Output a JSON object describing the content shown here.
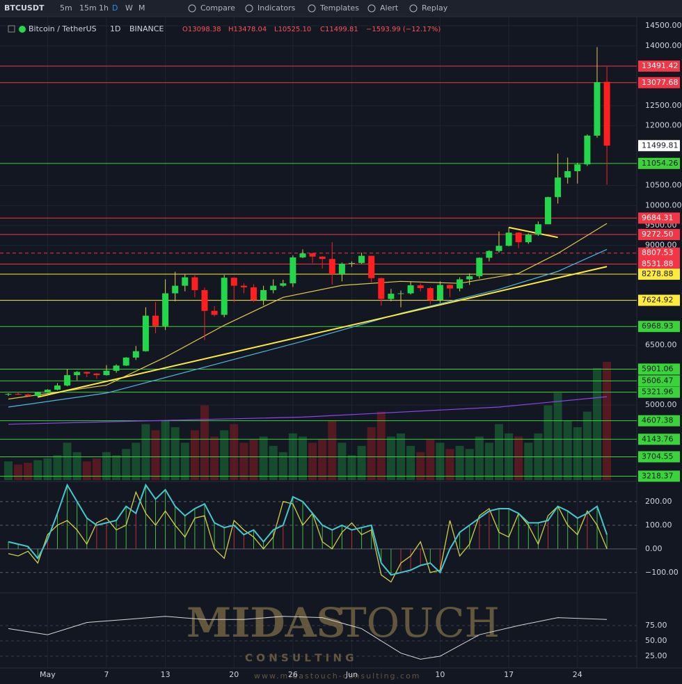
{
  "toolbar": {
    "symbol": "BTCUSDT",
    "intervals": [
      "5m",
      "15m",
      "1h",
      "D",
      "W",
      "M"
    ],
    "buttons": [
      "Compare",
      "Indicators",
      "Templates",
      "Alert",
      "Replay"
    ]
  },
  "chart_data": {
    "type": "candlestick",
    "title": "Bitcoin / TetherUS",
    "interval": "1D",
    "exchange": "BINANCE",
    "legend_values": [
      "O13098.38",
      "H13478.04",
      "L10525.10",
      "C11499.81",
      "−1593.99 (−12.17%)"
    ],
    "categories": [
      null,
      null,
      null,
      null,
      "May",
      null,
      null,
      null,
      null,
      null,
      "7",
      null,
      null,
      null,
      null,
      null,
      "13",
      null,
      null,
      null,
      null,
      null,
      null,
      "20",
      null,
      null,
      null,
      null,
      null,
      "26",
      null,
      null,
      null,
      null,
      null,
      "Jun",
      null,
      null,
      null,
      null,
      null,
      null,
      null,
      null,
      "10",
      null,
      null,
      null,
      null,
      null,
      null,
      "17",
      null,
      null,
      null,
      null,
      null,
      null,
      "24",
      null,
      null,
      null
    ],
    "open": [
      5270,
      5280,
      5265,
      5230,
      5320,
      5385,
      5490,
      5750,
      5830,
      5790,
      5750,
      5860,
      5990,
      6190,
      6350,
      7240,
      6980,
      7800,
      7990,
      8200,
      7880,
      7360,
      7260,
      8190,
      7990,
      7950,
      7630,
      7880,
      7990,
      8050,
      8700,
      8800,
      8720,
      8660,
      8280,
      8540,
      8560,
      8740,
      8180,
      7660,
      7790,
      7800,
      8000,
      7930,
      7630,
      8010,
      7920,
      8150,
      8230,
      8690,
      8860,
      8990,
      9320,
      9080,
      9270,
      9530,
      10210,
      10700,
      10860,
      11030,
      11750,
      13098.38
    ],
    "high": [
      5300,
      5310,
      5280,
      5330,
      5400,
      5550,
      5900,
      5850,
      5840,
      5800,
      6000,
      6020,
      6200,
      6480,
      7450,
      7580,
      8150,
      8340,
      8270,
      8280,
      7940,
      7480,
      8260,
      8200,
      8050,
      8030,
      7990,
      8150,
      8140,
      8750,
      8900,
      8820,
      8730,
      9080,
      8570,
      8600,
      8820,
      8740,
      8190,
      7910,
      7870,
      8100,
      8050,
      7960,
      8100,
      8020,
      8200,
      8300,
      8700,
      8880,
      9350,
      9450,
      9330,
      9300,
      9600,
      10220,
      11300,
      11200,
      11070,
      11780,
      13970,
      13478.04
    ],
    "low": [
      5230,
      5250,
      5200,
      5210,
      5310,
      5370,
      5470,
      5620,
      5700,
      5660,
      5740,
      5810,
      5980,
      6130,
      6340,
      6800,
      6880,
      7600,
      7850,
      7700,
      6630,
      7220,
      7200,
      7580,
      7800,
      7580,
      7500,
      7800,
      7960,
      7960,
      8680,
      8560,
      8420,
      8020,
      8100,
      8460,
      8540,
      8080,
      7490,
      7600,
      7450,
      7770,
      7850,
      7520,
      7560,
      7700,
      7850,
      8010,
      8170,
      8600,
      8820,
      8980,
      8930,
      9040,
      9240,
      9530,
      10050,
      10550,
      10550,
      10990,
      11700,
      10525.1
    ],
    "close": [
      5280,
      5265,
      5230,
      5320,
      5385,
      5490,
      5750,
      5830,
      5790,
      5750,
      5860,
      5990,
      6190,
      6350,
      7240,
      6980,
      7800,
      7990,
      8200,
      7880,
      7360,
      7260,
      8190,
      7990,
      7950,
      7630,
      7880,
      7990,
      8050,
      8700,
      8800,
      8720,
      8660,
      8280,
      8540,
      8560,
      8740,
      8180,
      7660,
      7790,
      7800,
      8000,
      7930,
      7630,
      8010,
      7920,
      8150,
      8230,
      8690,
      8860,
      8990,
      9320,
      9080,
      9270,
      9530,
      10210,
      10700,
      10860,
      11030,
      11750,
      13090,
      11499.81
    ],
    "volume": [
      30,
      25,
      28,
      32,
      35,
      40,
      60,
      45,
      30,
      35,
      45,
      40,
      50,
      60,
      90,
      80,
      95,
      85,
      60,
      80,
      120,
      70,
      80,
      90,
      60,
      65,
      70,
      55,
      45,
      75,
      70,
      60,
      65,
      95,
      60,
      40,
      55,
      85,
      110,
      70,
      75,
      55,
      45,
      65,
      60,
      50,
      55,
      50,
      70,
      60,
      90,
      75,
      70,
      60,
      75,
      120,
      140,
      95,
      85,
      110,
      180,
      190
    ],
    "up_color": "#22d84a",
    "down_color": "#ff1f1f",
    "ylim": [
      3120,
      14660
    ],
    "yticks": [
      {
        "value": 14500,
        "label": "14500.00"
      },
      {
        "value": 14000,
        "label": "14000.00"
      },
      {
        "value": 12500,
        "label": "12500.00"
      },
      {
        "value": 12000,
        "label": "12000.00"
      },
      {
        "value": 10500,
        "label": "10500.00"
      },
      {
        "value": 10000,
        "label": "10000.00"
      },
      {
        "value": 9500,
        "label": "9500.00"
      },
      {
        "value": 9000,
        "label": "9000.00"
      },
      {
        "value": 6500,
        "label": "6500.00"
      },
      {
        "value": 5000,
        "label": "5000.00"
      }
    ],
    "levels": [
      {
        "value": 13491.42,
        "label": "13491.42",
        "color": "#f23645",
        "style": "solid"
      },
      {
        "value": 13077.68,
        "label": "13077.68",
        "color": "#f23645",
        "style": "solid"
      },
      {
        "value": 11499.81,
        "label": "11499.81",
        "color": "#ffffff",
        "style": "none"
      },
      {
        "value": 11054.26,
        "label": "11054.26",
        "color": "#3ad43a",
        "style": "solid"
      },
      {
        "value": 9684.31,
        "label": "9684.31",
        "color": "#f23645",
        "style": "solid"
      },
      {
        "value": 9272.5,
        "label": "9272.50",
        "color": "#f23645",
        "style": "solid"
      },
      {
        "value": 8807.53,
        "label": "8807.53",
        "color": "#f23645",
        "style": "dashed"
      },
      {
        "value": 8531.88,
        "label": "8531.88",
        "color": "#f23645",
        "style": "solid"
      },
      {
        "value": 8278.88,
        "label": "8278.88",
        "color": "#ffeb3b",
        "style": "solid"
      },
      {
        "value": 7624.92,
        "label": "7624.92",
        "color": "#ffeb3b",
        "style": "solid"
      },
      {
        "value": 6968.93,
        "label": "6968.93",
        "color": "#3ad43a",
        "style": "solid"
      },
      {
        "value": 5901.06,
        "label": "5901.06",
        "color": "#3ad43a",
        "style": "solid"
      },
      {
        "value": 5606.47,
        "label": "5606.47",
        "color": "#3ad43a",
        "style": "solid"
      },
      {
        "value": 5321.96,
        "label": "5321.96",
        "color": "#3ad43a",
        "style": "solid"
      },
      {
        "value": 4607.38,
        "label": "4607.38",
        "color": "#3ad43a",
        "style": "solid"
      },
      {
        "value": 4143.76,
        "label": "4143.76",
        "color": "#3ad43a",
        "style": "solid"
      },
      {
        "value": 3704.55,
        "label": "3704.55",
        "color": "#3ad43a",
        "style": "solid"
      },
      {
        "value": 3218.37,
        "label": "3218.37",
        "color": "#3ad43a",
        "style": "solid"
      }
    ],
    "moving_averages": [
      {
        "color": "#e6c94a",
        "x": [
          0,
          10,
          16,
          22,
          28,
          34,
          40,
          46,
          52,
          56,
          61
        ],
        "values": [
          5150,
          5500,
          6200,
          7000,
          7700,
          8000,
          8100,
          8050,
          8300,
          8800,
          9550
        ]
      },
      {
        "color": "#4fb8e0",
        "x": [
          0,
          10,
          20,
          30,
          40,
          50,
          56,
          61
        ],
        "values": [
          4950,
          5300,
          5950,
          6600,
          7300,
          7900,
          8350,
          8900
        ]
      },
      {
        "color": "#8e44ec",
        "x": [
          0,
          30,
          50,
          61
        ],
        "values": [
          4520,
          4700,
          4950,
          5210
        ]
      }
    ],
    "trend_lines": [
      {
        "color": "#ffeb3b",
        "x": [
          3,
          61
        ],
        "values": [
          5200,
          8470
        ]
      },
      {
        "color": "#ffeb3b",
        "x": [
          51,
          56
        ],
        "values": [
          9450,
          9200
        ]
      }
    ]
  },
  "oscillator": {
    "type": "line",
    "ylim": [
      -180,
      276
    ],
    "yticks": [
      {
        "value": 200,
        "label": "200.00"
      },
      {
        "value": 100,
        "label": "100.00"
      },
      {
        "value": 0,
        "label": "0.00"
      },
      {
        "value": -100,
        "label": "−100.00"
      }
    ],
    "series": [
      {
        "color": "#45c8d0",
        "values": [
          30,
          20,
          10,
          -40,
          40,
          150,
          270,
          200,
          130,
          100,
          110,
          120,
          180,
          150,
          270,
          210,
          250,
          180,
          140,
          170,
          190,
          110,
          90,
          100,
          60,
          80,
          30,
          80,
          100,
          220,
          200,
          150,
          100,
          80,
          100,
          80,
          90,
          100,
          -60,
          -110,
          -100,
          -90,
          -70,
          -60,
          -100,
          0,
          70,
          100,
          130,
          160,
          170,
          170,
          150,
          110,
          110,
          120,
          180,
          160,
          130,
          150,
          180,
          60
        ]
      },
      {
        "color": "#d2cf45",
        "values": [
          -20,
          -30,
          -10,
          -60,
          60,
          100,
          120,
          80,
          20,
          110,
          130,
          80,
          100,
          240,
          150,
          100,
          160,
          100,
          50,
          130,
          140,
          0,
          -40,
          120,
          80,
          50,
          0,
          50,
          200,
          190,
          100,
          150,
          30,
          0,
          70,
          110,
          60,
          80,
          -110,
          -140,
          -60,
          -30,
          30,
          -100,
          -90,
          120,
          -30,
          20,
          140,
          170,
          70,
          50,
          150,
          100,
          20,
          140,
          180,
          100,
          60,
          160,
          100,
          0
        ]
      }
    ],
    "histogram_up": "#3fbf3f",
    "histogram_down": "#c0302f"
  },
  "stoch": {
    "type": "line",
    "ylim": [
      8,
      125
    ],
    "yticks": [
      {
        "value": 75,
        "label": "75.00"
      },
      {
        "value": 50,
        "label": "50.00"
      },
      {
        "value": 25,
        "label": "25.00"
      }
    ],
    "series": [
      {
        "color": "#d8d8d8",
        "x": [
          0,
          4,
          8,
          12,
          16,
          20,
          24,
          28,
          32,
          36,
          40,
          42,
          44,
          48,
          52,
          56,
          61
        ],
        "values": [
          70,
          60,
          80,
          85,
          90,
          85,
          85,
          90,
          88,
          70,
          30,
          20,
          25,
          60,
          75,
          88,
          85
        ]
      }
    ]
  },
  "watermark": {
    "brand": "MIDAS",
    "brand2": "TOUCH",
    "tagline": "C O N S U L T I N G",
    "url": "www.midastouch-consulting.com"
  }
}
